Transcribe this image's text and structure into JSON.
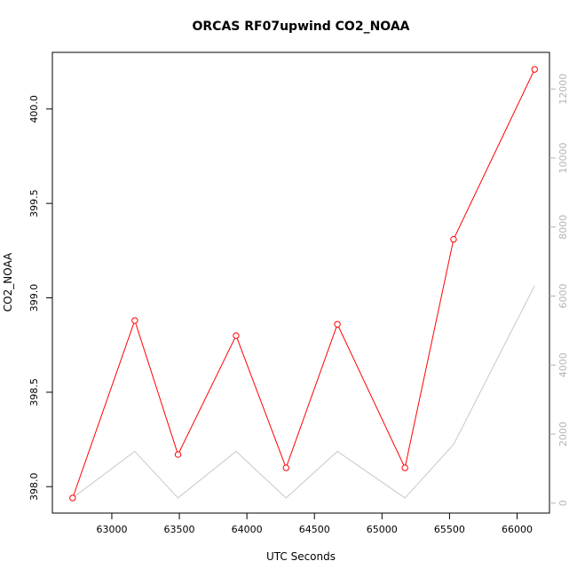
{
  "chart_data": {
    "type": "line",
    "title": "ORCAS RF07upwind CO2_NOAA",
    "xlabel": "UTC Seconds",
    "ylabel": "CO2_NOAA",
    "xlim": [
      66558.66,
      66216.04
    ],
    "ylim": [
      397.86,
      400.3
    ],
    "y2lim": [
      -288.5,
      13060.2
    ],
    "x_ticks": [
      63000,
      63500,
      64000,
      64500,
      65000,
      65500,
      66000
    ],
    "y_ticks": [
      398.0,
      398.5,
      399.0,
      399.5,
      400.0
    ],
    "y_tick_labels": [
      "398.0",
      "398.5",
      "399.0",
      "399.5",
      "400.0"
    ],
    "y2_ticks": [
      0,
      2000,
      4000,
      6000,
      8000,
      10000,
      12000
    ],
    "y2_tick_labels": [
      "0",
      "2000",
      "4000",
      "6000",
      "8000",
      "10000",
      "12000"
    ],
    "series": [
      {
        "axis": "left",
        "color": "#ff0000",
        "markers": "open-circle",
        "x": [
          62710,
          63170,
          63490,
          63920,
          64290,
          64670,
          65170,
          65530,
          66130
        ],
        "values": [
          397.94,
          398.88,
          398.17,
          398.8,
          398.1,
          398.86,
          398.1,
          399.31,
          400.21
        ]
      },
      {
        "axis": "right",
        "color": "#c8c8c8",
        "markers": "none",
        "x": [
          62710,
          63170,
          63490,
          63920,
          64290,
          64670,
          65170,
          65530,
          66130
        ],
        "values": [
          150,
          1500,
          150,
          1500,
          150,
          1500,
          150,
          1700,
          6300
        ]
      }
    ],
    "grid": false,
    "legend": "none"
  },
  "colors": {
    "primary_series": "#ff0000",
    "secondary_series": "#c8c8c8",
    "secondary_axis": "#b4b4b4",
    "frame": "#000000"
  }
}
